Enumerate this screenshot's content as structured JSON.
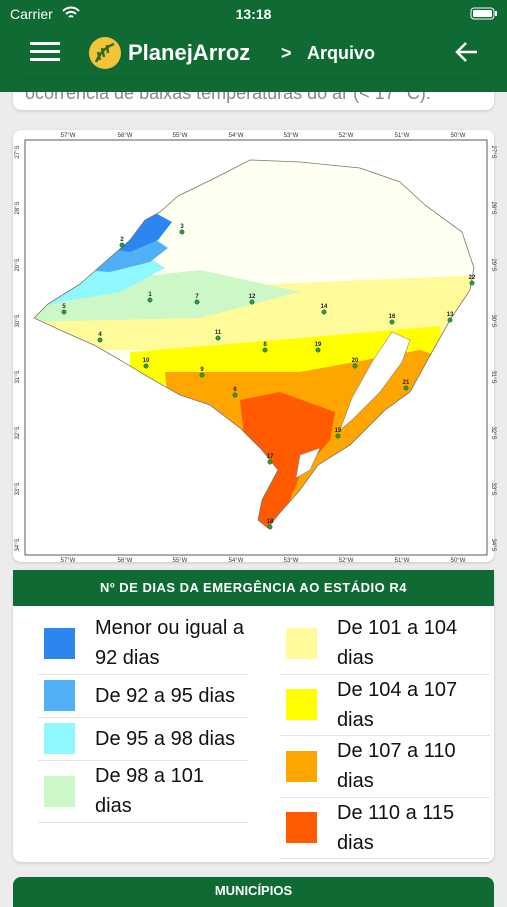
{
  "status_bar": {
    "carrier": "Carrier",
    "time": "13:18"
  },
  "header": {
    "app_name": "PlanejArroz",
    "separator": ">",
    "section": "Arquivo"
  },
  "intro_text": "ocorrência de baixas temperaturas do ar (< 17 °C).",
  "map": {
    "longitude_labels": [
      "57°W",
      "56°W",
      "55°W",
      "54°W",
      "53°W",
      "52°W",
      "51°W",
      "50°W"
    ],
    "latitude_labels": [
      "27°S",
      "28°S",
      "29°S",
      "30°S",
      "31°S",
      "32°S",
      "33°S",
      "34°S"
    ],
    "stations": [
      "1",
      "2",
      "3",
      "4",
      "5",
      "6",
      "7",
      "8",
      "9",
      "10",
      "11",
      "12",
      "13",
      "14",
      "15",
      "16",
      "17",
      "18",
      "19",
      "20",
      "21",
      "22"
    ]
  },
  "legend": {
    "title": "Nº DE DIAS DA EMERGÊNCIA AO ESTÁDIO R4",
    "items": [
      {
        "label": "Menor ou igual a 92 dias",
        "color": "#2b86f0"
      },
      {
        "label": "De 92 a 95 dias",
        "color": "#4fb0f5"
      },
      {
        "label": "De 95 a 98 dias",
        "color": "#8ff8ff"
      },
      {
        "label": "De 98 a 101 dias",
        "color": "#ccf7c6"
      },
      {
        "label": "De 101 a 104 dias",
        "color": "#fffb9a"
      },
      {
        "label": "De 104 a 107 dias",
        "color": "#ffff00"
      },
      {
        "label": "De 107 a 110 dias",
        "color": "#ffa500"
      },
      {
        "label": "De 110 a 115 dias",
        "color": "#ff5a00"
      }
    ]
  },
  "municipios": {
    "title": "MUNICÍPIOS"
  }
}
